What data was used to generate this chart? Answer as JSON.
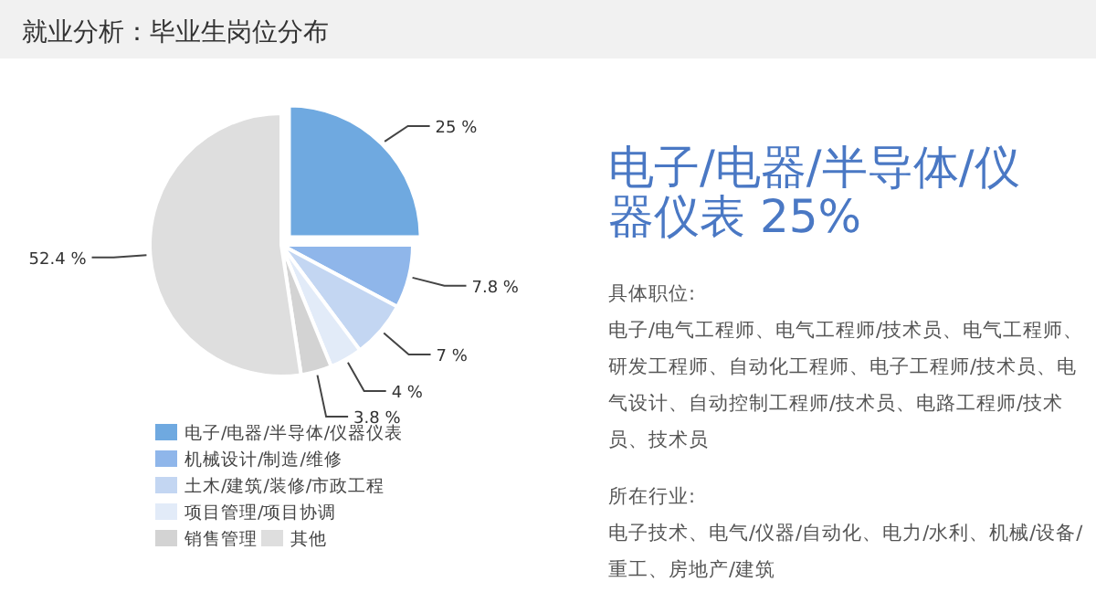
{
  "chart_data": {
    "type": "pie",
    "title": "就业分析：毕业生岗位分布",
    "categories": [
      "电子/电器/半导体/仪器仪表",
      "机械设计/制造/维修",
      "土木/建筑/装修/市政工程",
      "项目管理/项目协调",
      "销售管理",
      "其他"
    ],
    "values": [
      25,
      7.8,
      7,
      4,
      3.8,
      52.4
    ],
    "value_labels": [
      "25 %",
      "7.8 %",
      "7 %",
      "4 %",
      "3.8 %",
      "52.4 %"
    ],
    "colors": [
      "#6fa9e0",
      "#8fb6ea",
      "#c3d6f2",
      "#e2ebf8",
      "#d3d3d3",
      "#dedede"
    ],
    "legend": "bottom",
    "annotations": [
      "电子/电器/半导体/仪器仪表 25%",
      "具体职位:",
      "电子/电气工程师、电气工程师/技术员、电气工程师、研发工程师、自动化工程师、电子工程师/技术员、电气设计、自动控制工程师/技术员、电路工程师/技术员、技术员",
      "所在行业:",
      "电子技术、电气/仪器/自动化、电力/水利、机械/设备/重工、房地产/建筑"
    ]
  }
}
